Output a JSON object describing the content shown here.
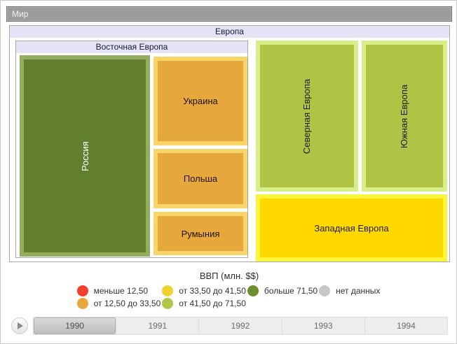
{
  "breadcrumb": {
    "label": "Мир"
  },
  "treemap": {
    "europe": {
      "label": "Европа"
    },
    "eastern": {
      "label": "Восточная Европа"
    },
    "cells": {
      "russia": {
        "label": "Россия",
        "fill": "#617f2e",
        "border": "#94ae5e",
        "text": "#ffffff"
      },
      "ukraine": {
        "label": "Украина",
        "fill": "#e6a73d",
        "border": "#f9d468",
        "text": "#1f1400"
      },
      "poland": {
        "label": "Польша",
        "fill": "#e6a73d",
        "border": "#f9d468",
        "text": "#1f1400"
      },
      "romania": {
        "label": "Румыния",
        "fill": "#e6a73d",
        "border": "#f9d468",
        "text": "#1f1400"
      },
      "northern": {
        "label": "Северная Европа",
        "fill": "#b0c345",
        "border": "#d8ee8a",
        "text": "#1e1e1e"
      },
      "southern": {
        "label": "Южная Европа",
        "fill": "#b0c345",
        "border": "#d8ee8a",
        "text": "#1e1e1e"
      },
      "western": {
        "label": "Западная Европа",
        "fill": "#ffd800",
        "border": "#fdf53a",
        "text": "#231c00"
      }
    }
  },
  "legend": {
    "title": "ВВП (млн. $$)",
    "items": [
      {
        "label": "меньше 12,50",
        "color": "#f2402c"
      },
      {
        "label": "от 12,50 до 33,50",
        "color": "#e6a73d"
      },
      {
        "label": "от 33,50 до 41,50",
        "color": "#eed32f"
      },
      {
        "label": "от 41,50 до 71,50",
        "color": "#b0c64b"
      },
      {
        "label": "больше 71,50",
        "color": "#6e8f2e"
      },
      {
        "label": "нет данных",
        "color": "#c6c6c6"
      }
    ]
  },
  "timeline": {
    "years": [
      "1990",
      "1991",
      "1992",
      "1993",
      "1994"
    ],
    "selected_year": "1990"
  },
  "chart_data": {
    "type": "treemap",
    "root": "Мир",
    "legend_title": "ВВП (млн. $$)",
    "legend_bins": [
      {
        "label": "меньше 12,50",
        "color": "#f2402c"
      },
      {
        "label": "от 12,50 до 33,50",
        "color": "#e6a73d"
      },
      {
        "label": "от 33,50 до 41,50",
        "color": "#eed32f"
      },
      {
        "label": "от 41,50 до 71,50",
        "color": "#b0c64b"
      },
      {
        "label": "больше 71,50",
        "color": "#6e8f2e"
      },
      {
        "label": "нет данных",
        "color": "#c6c6c6"
      }
    ],
    "years": [
      "1990",
      "1991",
      "1992",
      "1993",
      "1994"
    ],
    "year_selected": "1990",
    "nodes": [
      {
        "path": "Европа/Восточная Европа/Россия",
        "gdp_bin": "больше 71,50",
        "area_share": 0.31
      },
      {
        "path": "Европа/Восточная Европа/Украина",
        "gdp_bin": "от 12,50 до 33,50",
        "area_share": 0.1
      },
      {
        "path": "Европа/Восточная Европа/Польша",
        "gdp_bin": "от 12,50 до 33,50",
        "area_share": 0.07
      },
      {
        "path": "Европа/Восточная Европа/Румыния",
        "gdp_bin": "от 12,50 до 33,50",
        "area_share": 0.05
      },
      {
        "path": "Европа/Северная Европа",
        "gdp_bin": "от 41,50 до 71,50",
        "area_share": 0.18
      },
      {
        "path": "Европа/Южная Европа",
        "gdp_bin": "от 41,50 до 71,50",
        "area_share": 0.15
      },
      {
        "path": "Европа/Западная Европа",
        "gdp_bin": "от 33,50 до 41,50",
        "area_share": 0.15
      }
    ]
  }
}
